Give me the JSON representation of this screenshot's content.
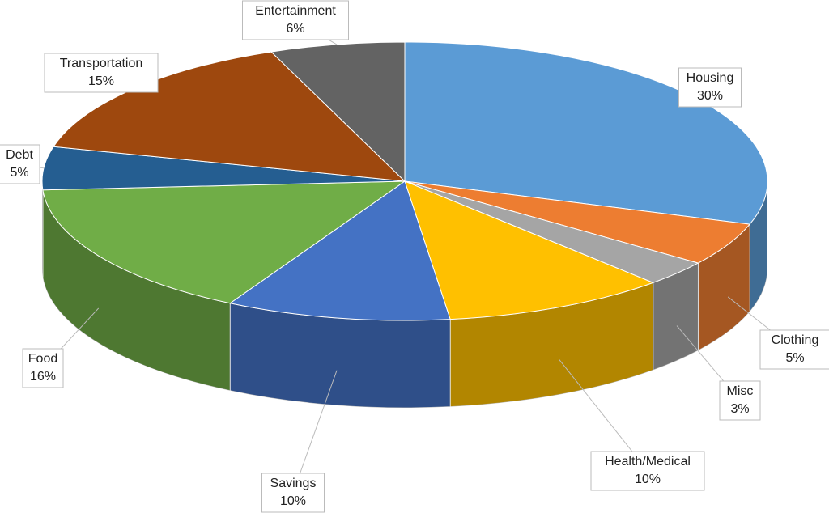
{
  "chart_data": {
    "type": "pie",
    "categories": [
      "Housing",
      "Clothing",
      "Misc",
      "Health/Medical",
      "Savings",
      "Food",
      "Debt",
      "Transportation",
      "Entertainment"
    ],
    "values": [
      30,
      5,
      3,
      10,
      10,
      16,
      5,
      15,
      6
    ],
    "value_labels": [
      "30%",
      "5%",
      "3%",
      "10%",
      "10%",
      "16%",
      "5%",
      "15%",
      "6%"
    ],
    "colors": [
      "#5b9bd5",
      "#ed7d31",
      "#a5a5a5",
      "#ffc000",
      "#4472c4",
      "#70ad47",
      "#255e91",
      "#9e480e",
      "#636363"
    ]
  }
}
